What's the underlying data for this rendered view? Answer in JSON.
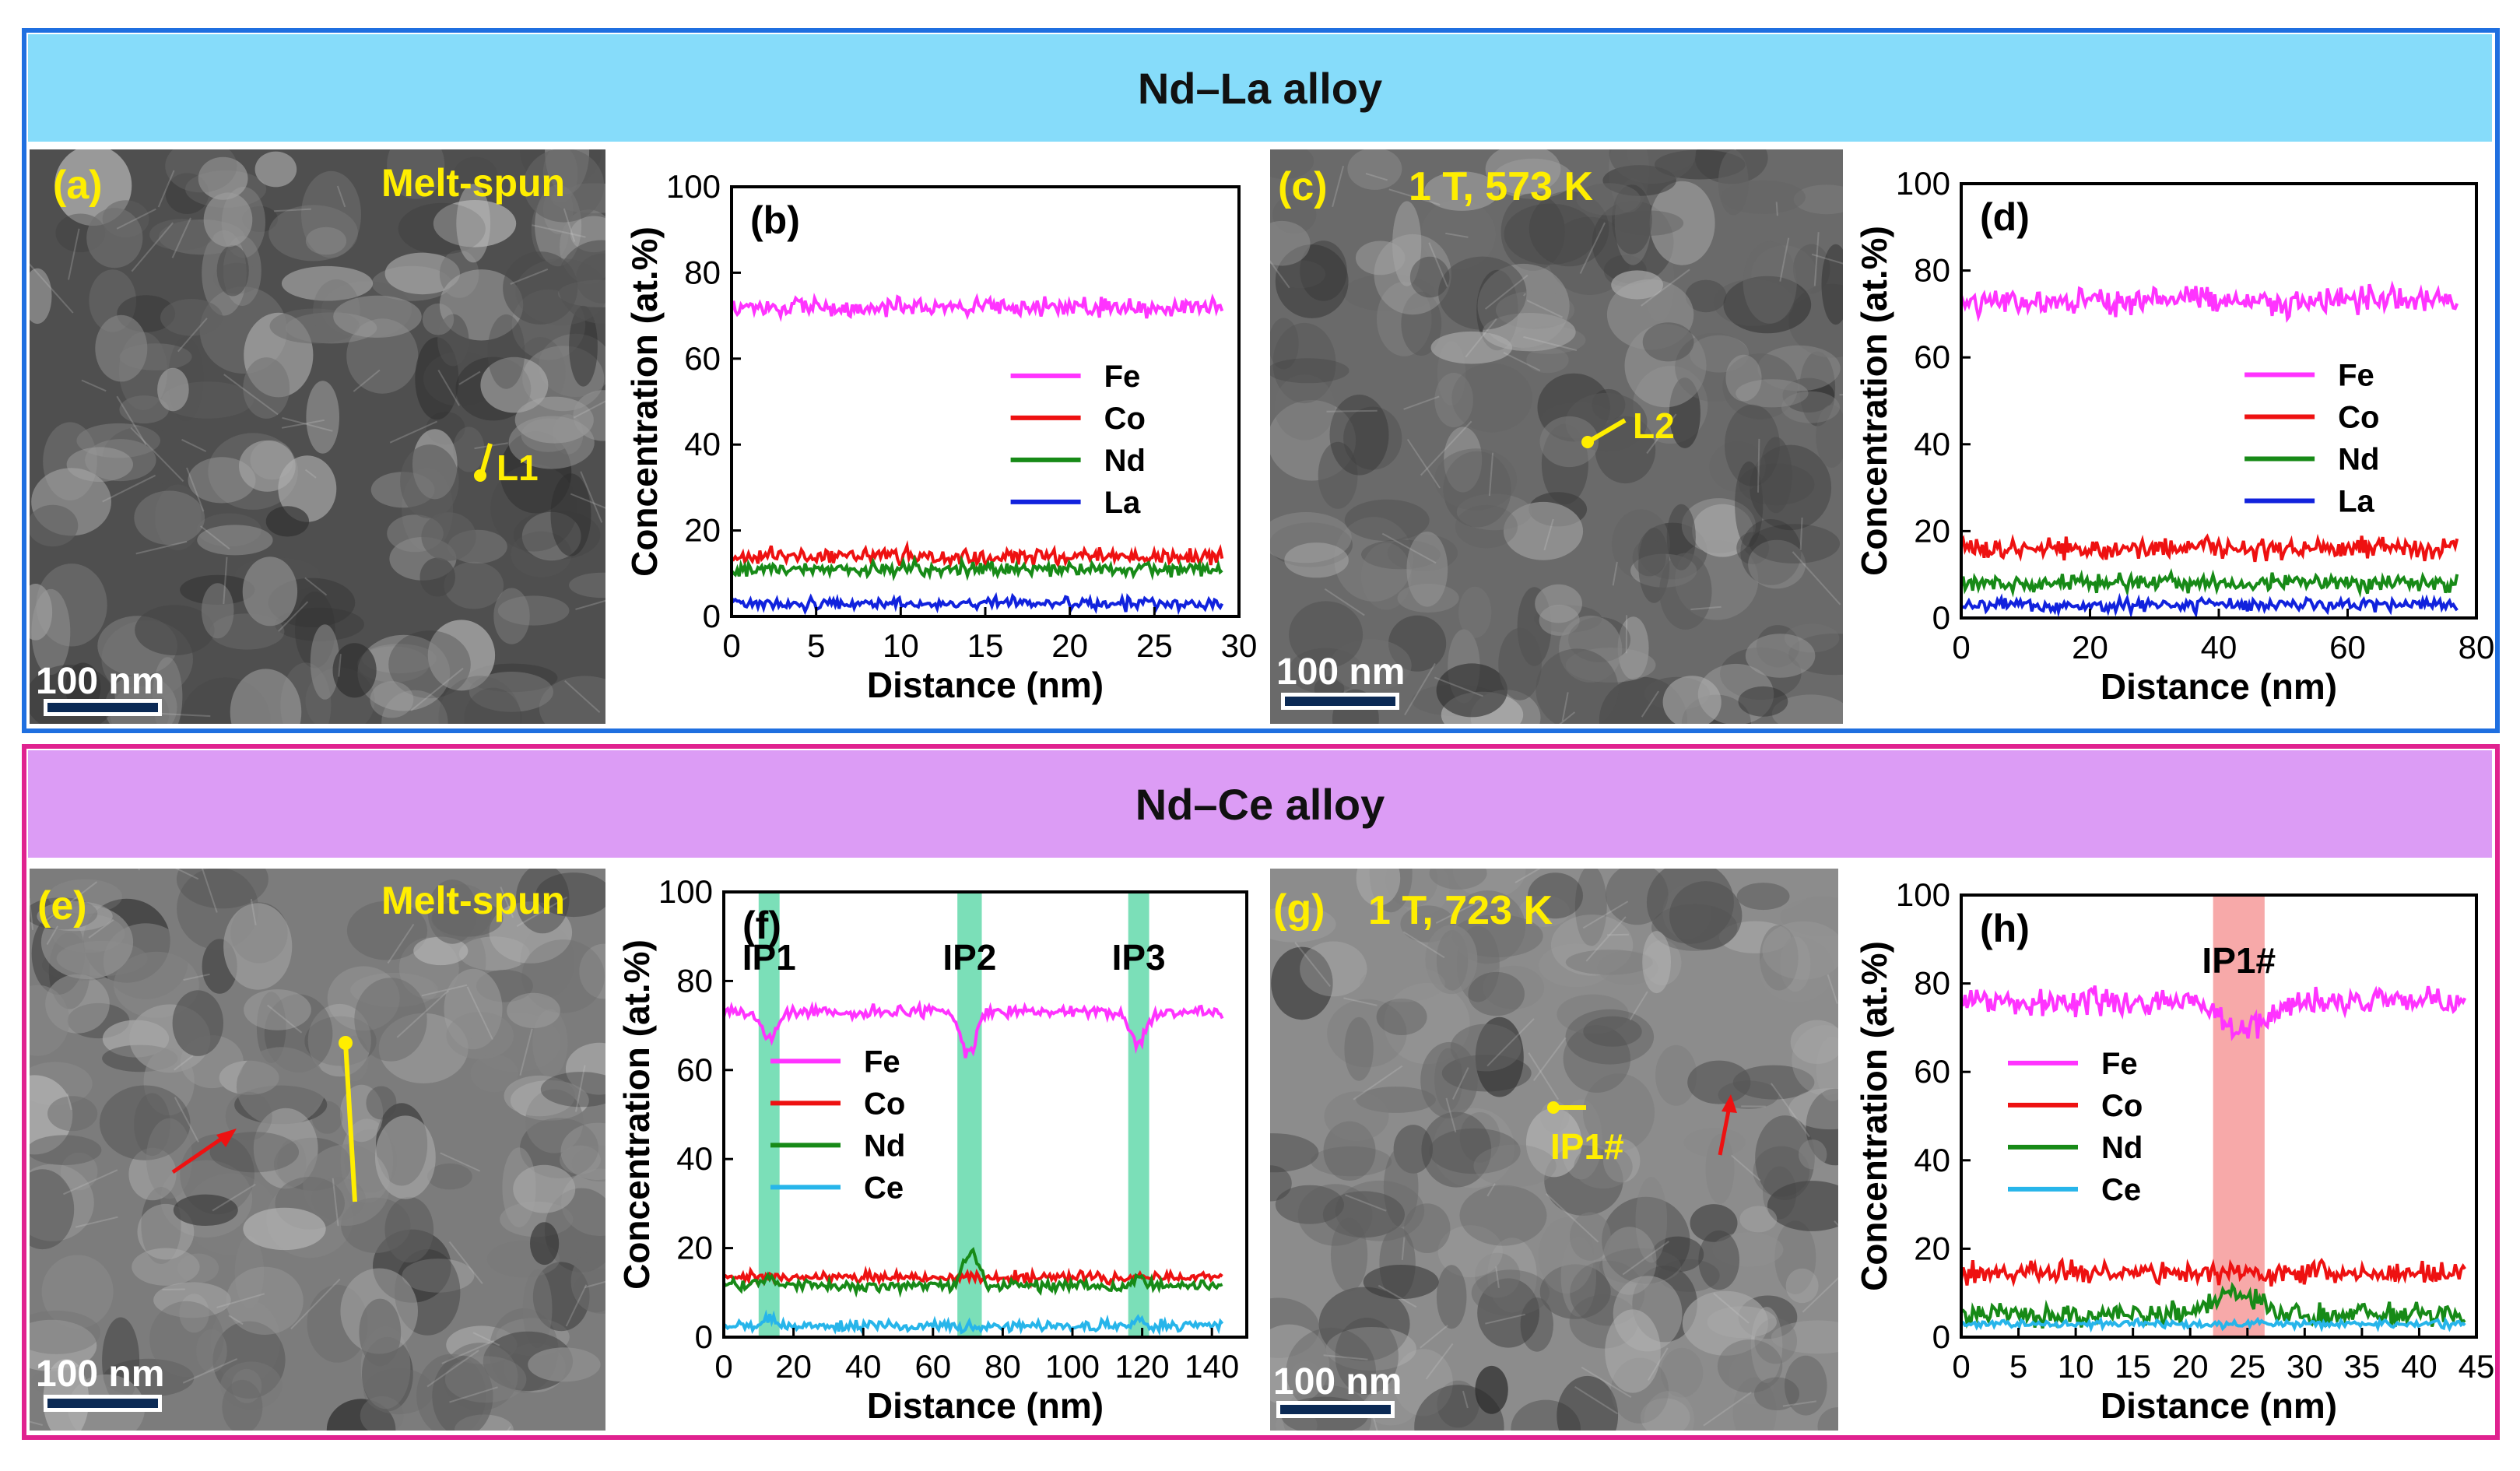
{
  "colors": {
    "la_border": "#1f6fe0",
    "la_banner": "#86dcfa",
    "ce_border": "#e0228f",
    "ce_banner": "#dc9cf5",
    "label_yellow": "#ffee00",
    "Fe": "#ff33ff",
    "Co": "#ee1111",
    "Nd": "#178a17",
    "La": "#1122dd",
    "Ce": "#27b5ea",
    "ip_green": "#6ddcb0",
    "ip_red": "#f6a0a0"
  },
  "sections": {
    "la_title": "Nd–La alloy",
    "ce_title": "Nd–Ce alloy"
  },
  "images": {
    "a": {
      "label": "(a)",
      "condition": "Melt-spun",
      "marker": "L1",
      "scale": "100 nm",
      "icon": "tem-micrograph-icon"
    },
    "c": {
      "label": "(c)",
      "condition": "1 T, 573 K",
      "marker": "L2",
      "scale": "100 nm",
      "icon": "tem-micrograph-icon"
    },
    "e": {
      "label": "(e)",
      "condition": "Melt-spun",
      "marker": "",
      "scale": "100 nm",
      "icon": "tem-micrograph-icon"
    },
    "g": {
      "label": "(g)",
      "condition": "1 T, 723 K",
      "marker": "IP1#",
      "scale": "100 nm",
      "icon": "tem-micrograph-icon"
    }
  },
  "chart_data": [
    {
      "id": "b",
      "panel_label": "(b)",
      "type": "line",
      "xlabel": "Distance (nm)",
      "ylabel": "Concentration (at.%)",
      "xlim": [
        0,
        30
      ],
      "ylim": [
        0,
        100
      ],
      "xticks": [
        0,
        5,
        10,
        15,
        20,
        25,
        30
      ],
      "yticks": [
        0,
        20,
        40,
        60,
        80,
        100
      ],
      "x_end": 29,
      "series": [
        {
          "name": "Fe",
          "mean": 72,
          "noise": 1.8
        },
        {
          "name": "Co",
          "mean": 14,
          "noise": 1.5
        },
        {
          "name": "Nd",
          "mean": 11,
          "noise": 1.5
        },
        {
          "name": "La",
          "mean": 3,
          "noise": 1.2
        }
      ],
      "highlights": []
    },
    {
      "id": "d",
      "panel_label": "(d)",
      "type": "line",
      "xlabel": "Distance (nm)",
      "ylabel": "Concentration (at.%)",
      "xlim": [
        0,
        80
      ],
      "ylim": [
        0,
        100
      ],
      "xticks": [
        0,
        20,
        40,
        60,
        80
      ],
      "yticks": [
        0,
        20,
        40,
        60,
        80,
        100
      ],
      "x_end": 77,
      "series": [
        {
          "name": "Fe",
          "mean": 73,
          "noise": 2.5
        },
        {
          "name": "Co",
          "mean": 16,
          "noise": 2.0
        },
        {
          "name": "Nd",
          "mean": 8,
          "noise": 1.6
        },
        {
          "name": "La",
          "mean": 3,
          "noise": 1.3
        }
      ],
      "highlights": []
    },
    {
      "id": "f",
      "panel_label": "(f)",
      "type": "line",
      "xlabel": "Distance (nm)",
      "ylabel": "Concentration (at.%)",
      "xlim": [
        0,
        150
      ],
      "ylim": [
        0,
        100
      ],
      "xticks": [
        0,
        20,
        40,
        60,
        80,
        100,
        120,
        140
      ],
      "yticks": [
        0,
        20,
        40,
        60,
        80,
        100
      ],
      "x_end": 143,
      "series": [
        {
          "name": "Fe",
          "mean": 73,
          "noise": 1.2,
          "dips": [
            {
              "x": 13,
              "d": -6,
              "w": 3
            },
            {
              "x": 70,
              "d": -10,
              "w": 3
            },
            {
              "x": 119,
              "d": -7,
              "w": 3
            }
          ]
        },
        {
          "name": "Co",
          "mean": 13.5,
          "noise": 1.0,
          "dips": []
        },
        {
          "name": "Nd",
          "mean": 11.5,
          "noise": 1.0,
          "dips": [
            {
              "x": 13,
              "d": 2,
              "w": 2
            },
            {
              "x": 71,
              "d": 8,
              "w": 3
            },
            {
              "x": 119,
              "d": 2,
              "w": 2
            }
          ]
        },
        {
          "name": "Ce",
          "mean": 2.5,
          "noise": 1.0,
          "dips": [
            {
              "x": 13,
              "d": 2,
              "w": 2
            },
            {
              "x": 119,
              "d": 2,
              "w": 2
            }
          ]
        }
      ],
      "highlights": [
        {
          "label": "IP1",
          "from": 10,
          "to": 16,
          "color": "ip_green"
        },
        {
          "label": "IP2",
          "from": 67,
          "to": 74,
          "color": "ip_green"
        },
        {
          "label": "IP3",
          "from": 116,
          "to": 122,
          "color": "ip_green"
        }
      ]
    },
    {
      "id": "h",
      "panel_label": "(h)",
      "type": "line",
      "xlabel": "Distance (nm)",
      "ylabel": "Concentration (at.%)",
      "xlim": [
        0,
        45
      ],
      "ylim": [
        0,
        100
      ],
      "xticks": [
        0,
        5,
        10,
        15,
        20,
        25,
        30,
        35,
        40,
        45
      ],
      "yticks": [
        0,
        20,
        40,
        60,
        80,
        100
      ],
      "x_end": 44,
      "series": [
        {
          "name": "Fe",
          "mean": 76,
          "noise": 2.3,
          "dips": [
            {
              "x": 24.5,
              "d": -7,
              "w": 2.5
            }
          ]
        },
        {
          "name": "Co",
          "mean": 14.5,
          "noise": 2.0,
          "dips": []
        },
        {
          "name": "Nd",
          "mean": 5,
          "noise": 2.0,
          "dips": [
            {
              "x": 24,
              "d": 5,
              "w": 3
            }
          ]
        },
        {
          "name": "Ce",
          "mean": 3,
          "noise": 0.7,
          "dips": []
        }
      ],
      "highlights": [
        {
          "label": "IP1#",
          "from": 22,
          "to": 26.5,
          "color": "ip_red"
        }
      ]
    }
  ]
}
